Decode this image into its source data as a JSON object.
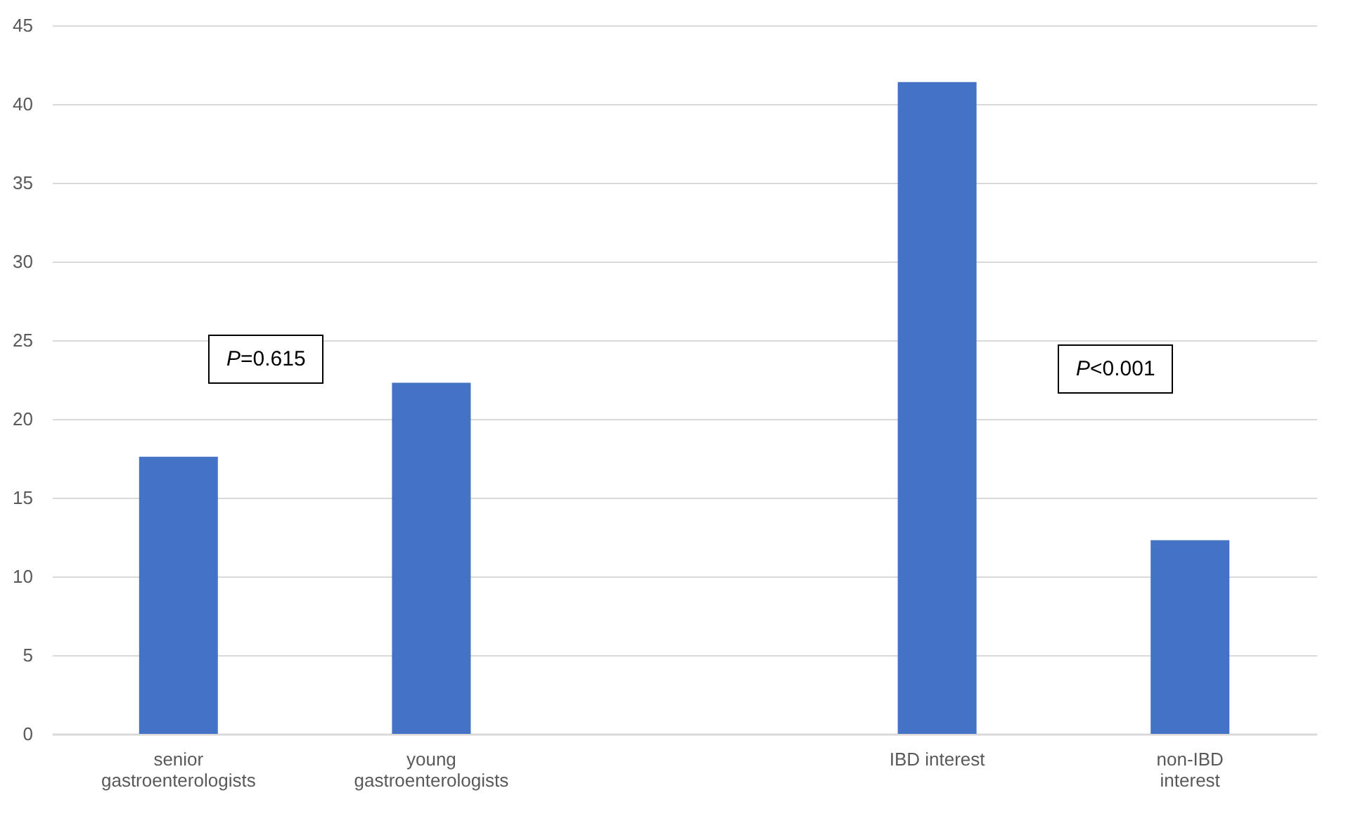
{
  "chart_data": {
    "type": "bar",
    "categories": [
      "senior gastroenterologists",
      "young gastroenterologists",
      null,
      "IBD interest",
      "non-IBD interest"
    ],
    "values": [
      17.6,
      22.3,
      null,
      41.4,
      12.3
    ],
    "color": "#4472c4",
    "ylim": [
      0,
      45
    ],
    "yticks": [
      0,
      5,
      10,
      15,
      20,
      25,
      30,
      35,
      40,
      45
    ],
    "grid": "y",
    "annotations": [
      "P=0.615",
      "P<0.001"
    ]
  }
}
